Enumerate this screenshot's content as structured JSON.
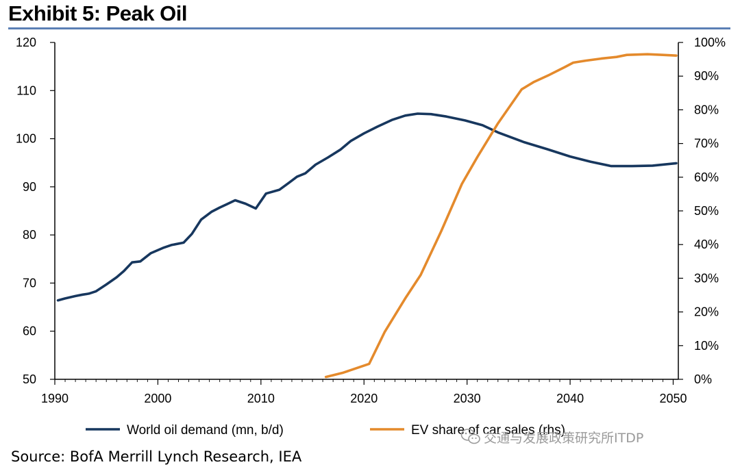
{
  "exhibit": {
    "title": "Exhibit 5: Peak Oil",
    "source": "Source:  BofA Merrill Lynch Research, IEA",
    "watermark": "交通与发展政策研究所ITDP",
    "watermark_icon": "wechat-icon"
  },
  "colors": {
    "rule": "#5b7fb5",
    "axis": "#000000",
    "oil": "#17375e",
    "ev": "#e48a2c"
  },
  "chart_data": {
    "type": "line",
    "title": "Exhibit 5: Peak Oil",
    "xlabel": "",
    "ylabel": "",
    "y2label": "",
    "xlim": [
      1990,
      2050.5
    ],
    "ylim": [
      50,
      120
    ],
    "y2lim": [
      0,
      100
    ],
    "grid": false,
    "legend_position": "bottom",
    "x_ticks": [
      1990,
      2000,
      2010,
      2020,
      2030,
      2040,
      2050
    ],
    "y_ticks": [
      50,
      60,
      70,
      80,
      90,
      100,
      110,
      120
    ],
    "y2_ticks": [
      "0%",
      "10%",
      "20%",
      "30%",
      "40%",
      "50%",
      "60%",
      "70%",
      "80%",
      "90%",
      "100%"
    ],
    "series": [
      {
        "name": "World oil demand (mn, b/d)",
        "axis": "left",
        "color": "#17375e",
        "points": [
          [
            1990.3,
            66.4
          ],
          [
            1991,
            66.8
          ],
          [
            1992,
            67.3
          ],
          [
            1992.7,
            67.6
          ],
          [
            1993.3,
            67.8
          ],
          [
            1994,
            68.3
          ],
          [
            1995,
            69.7
          ],
          [
            1996,
            71.2
          ],
          [
            1996.7,
            72.5
          ],
          [
            1997.5,
            74.3
          ],
          [
            1998.3,
            74.5
          ],
          [
            1999.3,
            76.2
          ],
          [
            2000.5,
            77.3
          ],
          [
            2001.3,
            77.9
          ],
          [
            2002.5,
            78.4
          ],
          [
            2003.3,
            80.2
          ],
          [
            2004.2,
            83.2
          ],
          [
            2005.2,
            84.8
          ],
          [
            2006,
            85.7
          ],
          [
            2006.7,
            86.4
          ],
          [
            2007.5,
            87.2
          ],
          [
            2008.5,
            86.5
          ],
          [
            2009.5,
            85.5
          ],
          [
            2010.5,
            88.6
          ],
          [
            2011.8,
            89.4
          ],
          [
            2012.7,
            90.8
          ],
          [
            2013.5,
            92.1
          ],
          [
            2014.3,
            92.8
          ],
          [
            2015.3,
            94.6
          ],
          [
            2016.5,
            96.1
          ],
          [
            2017.7,
            97.7
          ],
          [
            2018.7,
            99.5
          ],
          [
            2020,
            101.1
          ],
          [
            2021.3,
            102.5
          ],
          [
            2022.7,
            103.9
          ],
          [
            2024,
            104.8
          ],
          [
            2025.2,
            105.2
          ],
          [
            2026.5,
            105.1
          ],
          [
            2028,
            104.6
          ],
          [
            2029.8,
            103.8
          ],
          [
            2031.5,
            102.8
          ],
          [
            2033,
            101.3
          ],
          [
            2035.5,
            99.3
          ],
          [
            2037.8,
            97.8
          ],
          [
            2040,
            96.3
          ],
          [
            2042,
            95.2
          ],
          [
            2044,
            94.3
          ],
          [
            2046,
            94.3
          ],
          [
            2048,
            94.4
          ],
          [
            2050.3,
            94.9
          ]
        ]
      },
      {
        "name": "EV share of car sales (rhs)",
        "axis": "right",
        "color": "#e48a2c",
        "points": [
          [
            2016.3,
            0.7
          ],
          [
            2018,
            2.0
          ],
          [
            2020.5,
            4.6
          ],
          [
            2022,
            14
          ],
          [
            2024,
            24
          ],
          [
            2025.5,
            31
          ],
          [
            2027.5,
            44
          ],
          [
            2029.5,
            58
          ],
          [
            2031,
            66
          ],
          [
            2033,
            76
          ],
          [
            2035.3,
            86.1
          ],
          [
            2036.5,
            88.3
          ],
          [
            2038,
            90.4
          ],
          [
            2039.5,
            92.7
          ],
          [
            2040.3,
            94.0
          ],
          [
            2041.5,
            94.6
          ],
          [
            2043,
            95.2
          ],
          [
            2044.5,
            95.7
          ],
          [
            2045.5,
            96.3
          ],
          [
            2047.5,
            96.5
          ],
          [
            2049,
            96.3
          ],
          [
            2050.3,
            96.1
          ]
        ]
      }
    ]
  }
}
